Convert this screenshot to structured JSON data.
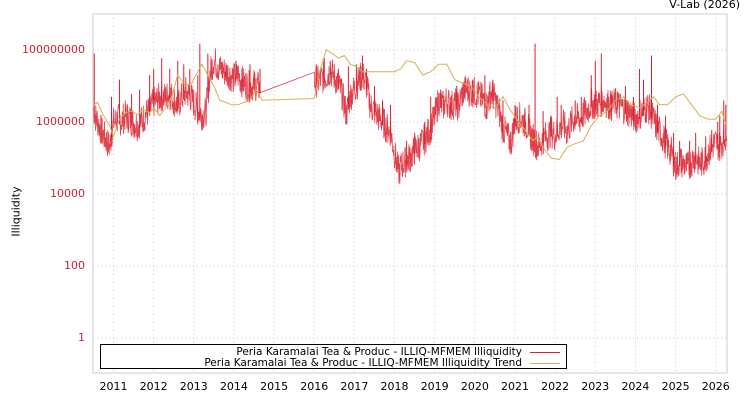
{
  "credit": "V-Lab (2026)",
  "chart_data": {
    "type": "line",
    "title": "",
    "xlabel": "",
    "ylabel": "Illiquidity",
    "yscale": "log",
    "ylim": [
      0.3,
      1000000000
    ],
    "xlim": [
      2010.5,
      2026.27
    ],
    "grid": true,
    "legend_position": "bottom-inside",
    "y_ticks": [
      {
        "value": 1,
        "label": "1"
      },
      {
        "value": 100,
        "label": "100"
      },
      {
        "value": 10000,
        "label": "10000"
      },
      {
        "value": 1000000,
        "label": "1000000"
      },
      {
        "value": 100000000,
        "label": "100000000"
      }
    ],
    "x_ticks": [
      "2011",
      "2012",
      "2013",
      "2014",
      "2015",
      "2016",
      "2017",
      "2018",
      "2019",
      "2020",
      "2021",
      "2022",
      "2023",
      "2024",
      "2025",
      "2026"
    ],
    "series": [
      {
        "name": "Peria Karamalai Tea & Produc - ILLIQ-MFMEM Illiquidity",
        "color": "#d9202e",
        "x": [
          2010.5,
          2010.55,
          2010.6,
          2010.7,
          2010.8,
          2010.9,
          2011.0,
          2011.1,
          2011.2,
          2011.3,
          2011.4,
          2011.5,
          2011.6,
          2011.7,
          2011.8,
          2011.9,
          2012.0,
          2012.1,
          2012.2,
          2012.3,
          2012.4,
          2012.5,
          2012.6,
          2012.7,
          2012.8,
          2012.9,
          2013.0,
          2013.1,
          2013.2,
          2013.3,
          2013.4,
          2013.5,
          2013.6,
          2013.7,
          2013.8,
          2013.9,
          2014.0,
          2014.1,
          2014.2,
          2014.3,
          2014.4,
          2014.5,
          2014.65,
          2016.0,
          2016.1,
          2016.2,
          2016.3,
          2016.4,
          2016.5,
          2016.6,
          2016.7,
          2016.8,
          2016.9,
          2017.0,
          2017.1,
          2017.2,
          2017.3,
          2017.4,
          2017.5,
          2017.6,
          2017.7,
          2017.8,
          2017.9,
          2018.0,
          2018.1,
          2018.2,
          2018.3,
          2018.4,
          2018.5,
          2018.6,
          2018.7,
          2018.8,
          2018.9,
          2019.0,
          2019.1,
          2019.2,
          2019.3,
          2019.4,
          2019.5,
          2019.6,
          2019.7,
          2019.8,
          2019.9,
          2020.0,
          2020.1,
          2020.2,
          2020.3,
          2020.4,
          2020.5,
          2020.6,
          2020.7,
          2020.8,
          2020.9,
          2021.0,
          2021.1,
          2021.2,
          2021.3,
          2021.4,
          2021.5,
          2021.6,
          2021.7,
          2021.8,
          2021.9,
          2022.0,
          2022.1,
          2022.2,
          2022.3,
          2022.4,
          2022.5,
          2022.6,
          2022.7,
          2022.8,
          2022.9,
          2023.0,
          2023.1,
          2023.2,
          2023.3,
          2023.4,
          2023.5,
          2023.6,
          2023.7,
          2023.8,
          2023.9,
          2024.0,
          2024.1,
          2024.2,
          2024.3,
          2024.4,
          2024.5,
          2024.6,
          2024.7,
          2024.8,
          2024.9,
          2025.0,
          2025.1,
          2025.2,
          2025.3,
          2025.4,
          2025.5,
          2025.6,
          2025.7,
          2025.8,
          2025.9,
          2026.0,
          2026.1,
          2026.2,
          2026.27
        ],
        "values": [
          1800000,
          1000000,
          800000,
          400000,
          250000,
          150000,
          700000,
          900000,
          800000,
          1100000,
          900000,
          700000,
          600000,
          800000,
          1200000,
          1500000,
          2500000,
          3000000,
          4000000,
          3500000,
          4500000,
          3000000,
          2000000,
          3500000,
          5000000,
          4000000,
          2500000,
          1500000,
          1200000,
          1300000,
          15000000,
          40000000,
          25000000,
          20000000,
          18000000,
          15000000,
          12000000,
          15000000,
          10000000,
          8000000,
          7000000,
          8000000,
          6500000,
          9500000,
          10000000,
          12000000,
          14000000,
          20000000,
          13000000,
          8000000,
          4000000,
          1200000,
          4000000,
          6000000,
          10000000,
          15000000,
          8000000,
          2000000,
          1500000,
          1000000,
          800000,
          500000,
          400000,
          100000,
          30000,
          50000,
          60000,
          80000,
          120000,
          150000,
          200000,
          300000,
          500000,
          1000000,
          3000000,
          2000000,
          3000000,
          2000000,
          2500000,
          2000000,
          5000000,
          6000000,
          5000000,
          5000000,
          4000000,
          3000000,
          2000000,
          5000000,
          3000000,
          1500000,
          500000,
          300000,
          200000,
          800000,
          1000000,
          800000,
          600000,
          300000,
          200000,
          150000,
          250000,
          300000,
          400000,
          300000,
          500000,
          600000,
          400000,
          700000,
          1000000,
          800000,
          1200000,
          1500000,
          2500000,
          2200000,
          2500000,
          3000000,
          2500000,
          2000000,
          2500000,
          2000000,
          1800000,
          1500000,
          1200000,
          900000,
          1200000,
          1500000,
          2000000,
          1200000,
          600000,
          400000,
          250000,
          150000,
          100000,
          40000,
          60000,
          50000,
          40000,
          60000,
          80000,
          50000,
          60000,
          100000,
          150000,
          200000,
          150000,
          250000,
          300000
        ],
        "spikes": [
          [
            2010.52,
            80000000
          ],
          [
            2010.95,
            5000000
          ],
          [
            2011.15,
            15000000
          ],
          [
            2011.45,
            6000000
          ],
          [
            2011.65,
            8000000
          ],
          [
            2011.9,
            20000000
          ],
          [
            2012.0,
            30000000
          ],
          [
            2012.2,
            60000000
          ],
          [
            2012.4,
            30000000
          ],
          [
            2012.6,
            50000000
          ],
          [
            2012.75,
            40000000
          ],
          [
            2012.9,
            30000000
          ],
          [
            2013.1,
            20000000
          ],
          [
            2013.15,
            150000000
          ],
          [
            2013.35,
            80000000
          ],
          [
            2013.6,
            40000000
          ],
          [
            2013.8,
            30000000
          ],
          [
            2014.05,
            50000000
          ],
          [
            2014.2,
            30000000
          ],
          [
            2014.4,
            40000000
          ],
          [
            2014.5,
            25000000
          ],
          [
            2014.65,
            30000000
          ],
          [
            2016.05,
            40000000
          ],
          [
            2016.25,
            60000000
          ],
          [
            2016.4,
            50000000
          ],
          [
            2016.6,
            30000000
          ],
          [
            2016.85,
            35000000
          ],
          [
            2017.05,
            40000000
          ],
          [
            2017.2,
            70000000
          ],
          [
            2017.3,
            30000000
          ],
          [
            2017.5,
            10000000
          ],
          [
            2017.7,
            4000000
          ],
          [
            2017.9,
            3000000
          ],
          [
            2018.3,
            300000
          ],
          [
            2018.5,
            500000
          ],
          [
            2018.75,
            1000000
          ],
          [
            2018.9,
            5000000
          ],
          [
            2019.15,
            8000000
          ],
          [
            2019.4,
            5000000
          ],
          [
            2019.55,
            10000000
          ],
          [
            2019.75,
            8000000
          ],
          [
            2019.95,
            15000000
          ],
          [
            2020.25,
            20000000
          ],
          [
            2020.35,
            7000000
          ],
          [
            2020.45,
            15000000
          ],
          [
            2020.7,
            4000000
          ],
          [
            2021.0,
            3000000
          ],
          [
            2021.25,
            2000000
          ],
          [
            2021.35,
            3000000
          ],
          [
            2021.5,
            150000000
          ],
          [
            2021.7,
            2000000
          ],
          [
            2021.9,
            1500000
          ],
          [
            2022.05,
            5000000
          ],
          [
            2022.15,
            3000000
          ],
          [
            2022.5,
            4000000
          ],
          [
            2022.65,
            5000000
          ],
          [
            2022.9,
            20000000
          ],
          [
            2023.0,
            50000000
          ],
          [
            2023.15,
            80000000
          ],
          [
            2023.4,
            6000000
          ],
          [
            2023.55,
            7000000
          ],
          [
            2023.75,
            10000000
          ],
          [
            2023.95,
            5000000
          ],
          [
            2024.1,
            30000000
          ],
          [
            2024.2,
            15000000
          ],
          [
            2024.4,
            70000000
          ],
          [
            2024.55,
            3000000
          ],
          [
            2024.75,
            1500000
          ],
          [
            2024.95,
            500000
          ],
          [
            2025.1,
            300000
          ],
          [
            2025.35,
            300000
          ],
          [
            2025.5,
            500000
          ],
          [
            2025.75,
            400000
          ],
          [
            2025.9,
            600000
          ],
          [
            2026.05,
            1000000
          ],
          [
            2026.1,
            1500000
          ],
          [
            2026.2,
            4000000
          ],
          [
            2026.25,
            3000000
          ]
        ]
      },
      {
        "name": "Peria Karamalai Tea & Produc - ILLIQ-MFMEM Illiquidity Trend",
        "color": "#d4b050",
        "x": [
          2010.5,
          2010.6,
          2010.75,
          2010.9,
          2011.0,
          2011.15,
          2011.3,
          2011.45,
          2011.6,
          2011.75,
          2011.9,
          2012.0,
          2012.15,
          2012.3,
          2012.45,
          2012.6,
          2012.8,
          2012.95,
          2013.1,
          2013.2,
          2013.35,
          2013.5,
          2013.65,
          2013.8,
          2013.95,
          2014.1,
          2014.25,
          2014.4,
          2014.55,
          2014.7,
          2016.0,
          2016.15,
          2016.3,
          2016.45,
          2016.6,
          2016.75,
          2016.9,
          2017.05,
          2017.2,
          2017.3,
          2017.4,
          2017.55,
          2017.7,
          2017.85,
          2018.0,
          2018.15,
          2018.3,
          2018.5,
          2018.7,
          2018.9,
          2019.1,
          2019.3,
          2019.5,
          2019.7,
          2019.9,
          2020.1,
          2020.3,
          2020.5,
          2020.7,
          2020.9,
          2021.1,
          2021.3,
          2021.45,
          2021.55,
          2021.7,
          2021.9,
          2022.1,
          2022.3,
          2022.5,
          2022.7,
          2022.9,
          2023.1,
          2023.3,
          2023.5,
          2023.7,
          2023.9,
          2024.1,
          2024.3,
          2024.45,
          2024.6,
          2024.8,
          2025.0,
          2025.2,
          2025.4,
          2025.6,
          2025.8,
          2026.0,
          2026.15,
          2026.27
        ],
        "values": [
          3000000,
          3500000,
          1500000,
          800000,
          400000,
          1200000,
          1800000,
          2000000,
          1600000,
          2200000,
          1800000,
          2500000,
          1500000,
          2500000,
          5000000,
          20000000,
          10000000,
          12000000,
          25000000,
          40000000,
          20000000,
          10000000,
          4000000,
          3500000,
          3000000,
          3000000,
          3500000,
          4000000,
          8000000,
          4000000,
          4500000,
          30000000,
          100000000,
          80000000,
          60000000,
          70000000,
          40000000,
          35000000,
          25000000,
          25000000,
          25000000,
          25000000,
          25000000,
          25000000,
          25000000,
          30000000,
          50000000,
          45000000,
          20000000,
          25000000,
          40000000,
          40000000,
          15000000,
          12000000,
          10000000,
          5000000,
          3000000,
          2500000,
          5000000,
          2000000,
          1000000,
          500000,
          300000,
          400000,
          200000,
          100000,
          90000,
          200000,
          250000,
          300000,
          800000,
          1500000,
          2000000,
          4000000,
          5000000,
          3000000,
          2500000,
          3500000,
          5000000,
          3000000,
          3000000,
          5000000,
          6000000,
          3000000,
          1500000,
          1200000,
          1200000,
          2000000,
          800000
        ]
      }
    ]
  },
  "legend": {
    "items": [
      {
        "label": "Peria Karamalai Tea & Produc - ILLIQ-MFMEM Illiquidity",
        "color": "#d9202e"
      },
      {
        "label": "Peria Karamalai Tea & Produc - ILLIQ-MFMEM Illiquidity Trend",
        "color": "#d4b050"
      }
    ]
  }
}
